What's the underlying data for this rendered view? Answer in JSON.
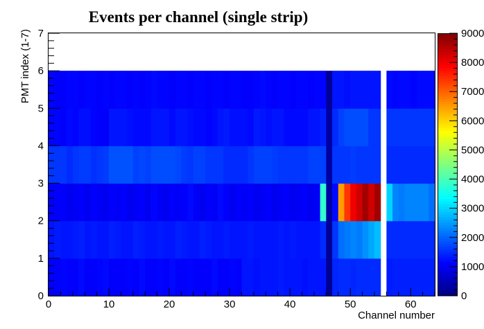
{
  "chart_data": {
    "type": "heatmap",
    "title": "Events per channel (single strip)",
    "xlabel": "Channel number",
    "ylabel": "PMT index (1-7)",
    "xlim": [
      0,
      64
    ],
    "ylim": [
      0,
      7
    ],
    "x_ticks": [
      "0",
      "10",
      "20",
      "30",
      "40",
      "50",
      "60"
    ],
    "y_ticks": [
      "0",
      "1",
      "2",
      "3",
      "4",
      "5",
      "6",
      "7"
    ],
    "colorbar": {
      "range": [
        0,
        9000
      ],
      "ticks": [
        "0",
        "1000",
        "2000",
        "3000",
        "4000",
        "5000",
        "6000",
        "7000",
        "8000",
        "9000"
      ],
      "colormap": "jet"
    },
    "bins": {
      "x_width": 1,
      "y_edges": [
        0,
        1,
        2,
        3,
        4,
        5,
        6
      ],
      "empty_channels": [
        55
      ]
    },
    "values": [
      [
        1100,
        1100,
        1150,
        1100,
        1100,
        1200,
        1100,
        1100,
        1150,
        1200,
        1100,
        1100,
        1100,
        1150,
        1100,
        1200,
        1100,
        1100,
        1150,
        1100,
        1200,
        1100,
        1100,
        1150,
        1100,
        1100,
        1100,
        1200,
        1100,
        1100,
        1150,
        1100,
        1300,
        1300,
        1250,
        1300,
        1300,
        1300,
        1350,
        1300,
        1300,
        1300,
        1250,
        1300,
        1300,
        1300,
        150,
        1450,
        1500,
        1500,
        1450,
        1500,
        1500,
        1500,
        1500,
        null,
        1350,
        1400,
        1400,
        1400,
        1400,
        1400,
        1400,
        1400
      ],
      [
        1300,
        1350,
        1300,
        1300,
        1350,
        1400,
        1300,
        1350,
        1300,
        1300,
        1400,
        1350,
        1300,
        1300,
        1400,
        1350,
        1300,
        1300,
        1350,
        1300,
        1300,
        1400,
        1350,
        1300,
        1300,
        1400,
        1350,
        1300,
        1300,
        1350,
        1300,
        1300,
        1300,
        1350,
        1300,
        1300,
        1300,
        1300,
        1350,
        1300,
        1350,
        1300,
        1300,
        1300,
        1300,
        1500,
        200,
        1600,
        2100,
        2200,
        2300,
        2200,
        2400,
        2600,
        2800,
        null,
        1500,
        1500,
        1500,
        1500,
        1500,
        1500,
        1500,
        1500
      ],
      [
        1050,
        1100,
        1100,
        1000,
        1050,
        1100,
        1000,
        1100,
        1050,
        1000,
        1100,
        1050,
        1100,
        1000,
        1050,
        1100,
        1000,
        1150,
        1050,
        1000,
        1100,
        1050,
        1100,
        1200,
        1050,
        1000,
        1100,
        1050,
        1200,
        1100,
        1000,
        1100,
        1050,
        1100,
        1000,
        1050,
        1100,
        1000,
        1050,
        1100,
        1000,
        1050,
        1100,
        1000,
        1050,
        3800,
        300,
        1200,
        6500,
        7400,
        8000,
        8300,
        8700,
        8300,
        8700,
        null,
        3000,
        2300,
        2200,
        2300,
        2300,
        2300,
        2300,
        2100
      ],
      [
        1600,
        1600,
        1600,
        1500,
        1600,
        1650,
        1650,
        1550,
        1600,
        1650,
        1850,
        1850,
        1850,
        1850,
        1700,
        1750,
        1700,
        1800,
        1800,
        1800,
        1800,
        1750,
        1650,
        1600,
        1700,
        1700,
        1600,
        1600,
        1600,
        1500,
        1500,
        1500,
        1500,
        1600,
        1700,
        1700,
        1700,
        1650,
        1600,
        1600,
        1600,
        1600,
        1600,
        1700,
        1700,
        1700,
        300,
        1600,
        1600,
        1600,
        1650,
        1600,
        1600,
        1600,
        1600,
        null,
        1500,
        1500,
        1500,
        1500,
        1500,
        1500,
        1500,
        1500
      ],
      [
        1150,
        1150,
        1100,
        1200,
        1150,
        1250,
        1250,
        1150,
        1100,
        1100,
        1300,
        1300,
        1300,
        1250,
        1200,
        1200,
        1200,
        1300,
        1300,
        1300,
        1200,
        1300,
        1300,
        1250,
        1200,
        1200,
        1150,
        1200,
        1300,
        1350,
        1250,
        1250,
        1250,
        1200,
        1350,
        1300,
        1250,
        1300,
        1300,
        1200,
        1200,
        1200,
        1200,
        1300,
        1300,
        1400,
        300,
        1500,
        1700,
        1800,
        1800,
        1800,
        1800,
        1600,
        1600,
        null,
        1600,
        1600,
        1600,
        1600,
        1600,
        1600,
        1600,
        1600
      ],
      [
        1150,
        1100,
        1100,
        1150,
        1150,
        1100,
        1150,
        1150,
        1100,
        1150,
        1100,
        1150,
        1150,
        1100,
        1150,
        1100,
        1150,
        1200,
        1150,
        1150,
        1100,
        1150,
        1150,
        1100,
        1150,
        1150,
        1100,
        1150,
        1150,
        1100,
        1150,
        1150,
        1100,
        1100,
        1150,
        1200,
        1150,
        1100,
        1150,
        1150,
        1100,
        1150,
        1150,
        1100,
        1150,
        1150,
        200,
        1300,
        1300,
        1250,
        1300,
        1300,
        1300,
        1300,
        1300,
        null,
        1200,
        1150,
        1200,
        1200,
        1150,
        1200,
        1200,
        1200
      ]
    ]
  }
}
